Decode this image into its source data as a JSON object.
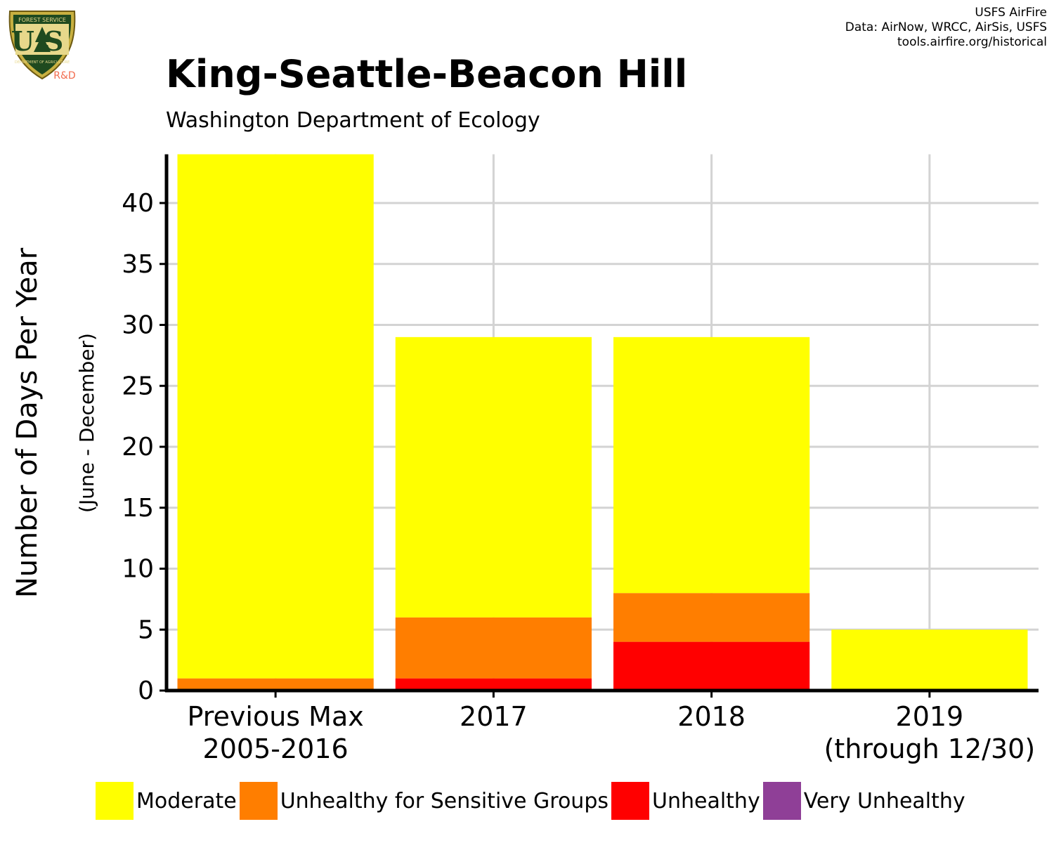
{
  "logo": {
    "top_text": "FOREST SERVICE",
    "initials": "US",
    "bottom_text": "DEPARTMENT OF AGRICULTURE",
    "tag": "R&D"
  },
  "credits": {
    "line1": "USFS AirFire",
    "line2": "Data: AirNow, WRCC, AirSis, USFS",
    "line3": "tools.airfire.org/historical"
  },
  "chart_data": {
    "type": "bar",
    "stacked": true,
    "title": "King-Seattle-Beacon Hill",
    "subtitle": "Washington Department of Ecology",
    "ylabel": "Number of Days Per Year",
    "ylabel_sub": "(June - December)",
    "xlabel": "",
    "ylim": [
      0,
      44
    ],
    "yticks": [
      0,
      5,
      10,
      15,
      20,
      25,
      30,
      35,
      40
    ],
    "grid": true,
    "legend_position": "bottom",
    "categories": [
      [
        "Previous Max",
        "2005-2016"
      ],
      [
        "2017"
      ],
      [
        "2018"
      ],
      [
        "2019",
        "(through 12/30)"
      ]
    ],
    "series": [
      {
        "name": "Unhealthy",
        "color": "#ff0000",
        "values": [
          0,
          1,
          4,
          0
        ]
      },
      {
        "name": "Unhealthy for Sensitive Groups",
        "color": "#ff7e00",
        "values": [
          1,
          5,
          4,
          0
        ]
      },
      {
        "name": "Moderate",
        "color": "#ffff00",
        "values": [
          43,
          23,
          21,
          5
        ]
      }
    ],
    "legend": [
      {
        "name": "Moderate",
        "color": "#ffff00"
      },
      {
        "name": "Unhealthy for Sensitive Groups",
        "color": "#ff7e00"
      },
      {
        "name": "Unhealthy",
        "color": "#ff0000"
      },
      {
        "name": "Very Unhealthy",
        "color": "#8f3f97"
      }
    ]
  }
}
